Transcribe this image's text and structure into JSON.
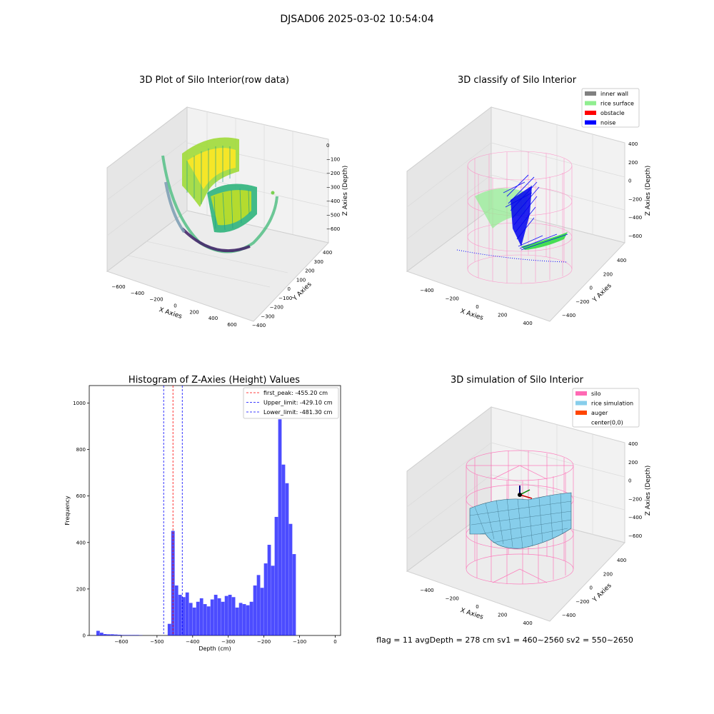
{
  "figure": {
    "suptitle": "DJSAD06 2025-03-02 10:54:04",
    "footer": "flag = 11   avgDepth = 278 cm   sv1 = 460~2560   sv2 = 550~2650"
  },
  "chart_data": [
    {
      "type": "scatter",
      "title": "3D Plot of Silo Interior(row data)",
      "xlabel": "X Axies",
      "ylabel": "Y Axies",
      "zlabel": "Z Axies (Depth)",
      "x_ticks": [
        "−600",
        "−400",
        "−200",
        "0",
        "200",
        "400",
        "600"
      ],
      "y_ticks": [
        "−400",
        "−300",
        "−200",
        "−100",
        "0",
        "100",
        "200",
        "300",
        "400"
      ],
      "z_ticks": [
        "0",
        "−100",
        "−200",
        "−300",
        "−400",
        "−500",
        "−600"
      ],
      "colormap": "viridis"
    },
    {
      "type": "scatter",
      "title": "3D classify of Silo Interior",
      "xlabel": "X Axies",
      "ylabel": "Y Axies",
      "zlabel": "Z Axies (Depth)",
      "x_ticks": [
        "−400",
        "−200",
        "0",
        "200",
        "400"
      ],
      "y_ticks": [
        "−400",
        "−200",
        "0",
        "200",
        "400"
      ],
      "z_ticks": [
        "400",
        "200",
        "0",
        "−200",
        "−400",
        "−600"
      ],
      "legend": {
        "position": "top-right",
        "entries": [
          {
            "label": "inner wall",
            "color": "#808080"
          },
          {
            "label": "rice surface",
            "color": "#90ee90"
          },
          {
            "label": "obstacle",
            "color": "#ff0000"
          },
          {
            "label": "noise",
            "color": "#0000ff"
          }
        ]
      }
    },
    {
      "type": "bar",
      "title": "Histogram of Z-Axies (Height) Values",
      "xlabel": "Depth (cm)",
      "ylabel": "Frequency",
      "xlim": [
        -690,
        15
      ],
      "ylim": [
        0,
        1075
      ],
      "x_ticks": [
        -600,
        -500,
        -400,
        -300,
        -200,
        -100,
        0
      ],
      "y_ticks": [
        0,
        200,
        400,
        600,
        800,
        1000
      ],
      "bar_color": "#0000ff",
      "bin_width": 10,
      "bins": [
        {
          "x": -670,
          "y": 20
        },
        {
          "x": -660,
          "y": 12
        },
        {
          "x": -650,
          "y": 6
        },
        {
          "x": -640,
          "y": 5
        },
        {
          "x": -630,
          "y": 5
        },
        {
          "x": -620,
          "y": 4
        },
        {
          "x": -610,
          "y": 3
        },
        {
          "x": -600,
          "y": 2
        },
        {
          "x": -590,
          "y": 2
        },
        {
          "x": -580,
          "y": 2
        },
        {
          "x": -570,
          "y": 2
        },
        {
          "x": -560,
          "y": 2
        },
        {
          "x": -550,
          "y": 1
        },
        {
          "x": -470,
          "y": 50
        },
        {
          "x": -460,
          "y": 450
        },
        {
          "x": -450,
          "y": 215
        },
        {
          "x": -440,
          "y": 175
        },
        {
          "x": -430,
          "y": 165
        },
        {
          "x": -420,
          "y": 185
        },
        {
          "x": -410,
          "y": 140
        },
        {
          "x": -400,
          "y": 120
        },
        {
          "x": -390,
          "y": 145
        },
        {
          "x": -380,
          "y": 160
        },
        {
          "x": -370,
          "y": 135
        },
        {
          "x": -360,
          "y": 125
        },
        {
          "x": -350,
          "y": 155
        },
        {
          "x": -340,
          "y": 175
        },
        {
          "x": -330,
          "y": 160
        },
        {
          "x": -320,
          "y": 145
        },
        {
          "x": -310,
          "y": 170
        },
        {
          "x": -300,
          "y": 175
        },
        {
          "x": -290,
          "y": 165
        },
        {
          "x": -280,
          "y": 120
        },
        {
          "x": -270,
          "y": 140
        },
        {
          "x": -260,
          "y": 135
        },
        {
          "x": -250,
          "y": 130
        },
        {
          "x": -240,
          "y": 145
        },
        {
          "x": -230,
          "y": 215
        },
        {
          "x": -220,
          "y": 260
        },
        {
          "x": -210,
          "y": 205
        },
        {
          "x": -200,
          "y": 310
        },
        {
          "x": -190,
          "y": 390
        },
        {
          "x": -180,
          "y": 300
        },
        {
          "x": -170,
          "y": 510
        },
        {
          "x": -160,
          "y": 930
        },
        {
          "x": -150,
          "y": 735
        },
        {
          "x": -140,
          "y": 655
        },
        {
          "x": -130,
          "y": 480
        },
        {
          "x": -120,
          "y": 350
        }
      ],
      "lines": [
        {
          "label": "first_peak: -455.20 cm",
          "x": -455.2,
          "color": "#ff0000"
        },
        {
          "label": "Upper_limit: -429.10 cm",
          "x": -429.1,
          "color": "#0000ff"
        },
        {
          "label": "Lower_limit: -481.30 cm",
          "x": -481.3,
          "color": "#0000ff"
        }
      ],
      "legend": {
        "position": "top-right"
      }
    },
    {
      "type": "surface",
      "title": "3D simulation of Silo Interior",
      "xlabel": "X Axies",
      "ylabel": "Y Axies",
      "zlabel": "Z Axies (Depth)",
      "x_ticks": [
        "−400",
        "−200",
        "0",
        "200",
        "400"
      ],
      "y_ticks": [
        "−400",
        "−200",
        "0",
        "200",
        "400"
      ],
      "z_ticks": [
        "400",
        "200",
        "0",
        "−200",
        "−400",
        "−600"
      ],
      "legend": {
        "position": "top-right",
        "entries": [
          {
            "label": "silo",
            "color": "#ff69b4"
          },
          {
            "label": "rice simulation",
            "color": "#87ceeb"
          },
          {
            "label": "auger",
            "color": "#ff4500"
          },
          {
            "label": "center(0,0)",
            "color": "#ffffff"
          }
        ]
      }
    }
  ]
}
